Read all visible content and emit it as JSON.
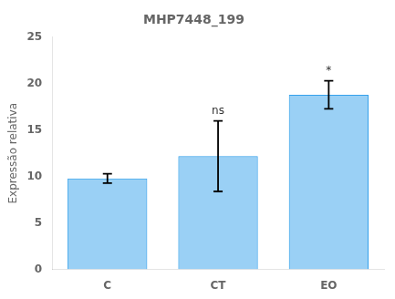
{
  "chart_data": {
    "type": "bar",
    "title": "MHP7448_199",
    "ylabel": "Expressão relativa",
    "categories": [
      "C",
      "CT",
      "EO"
    ],
    "values": [
      9.8,
      12.2,
      18.8
    ],
    "errors": [
      0.5,
      3.8,
      1.5
    ],
    "annotations": [
      null,
      "ns",
      "*"
    ],
    "ylim": [
      0,
      25
    ],
    "yticks": [
      0,
      5,
      10,
      15,
      20,
      25
    ],
    "grid": false
  }
}
